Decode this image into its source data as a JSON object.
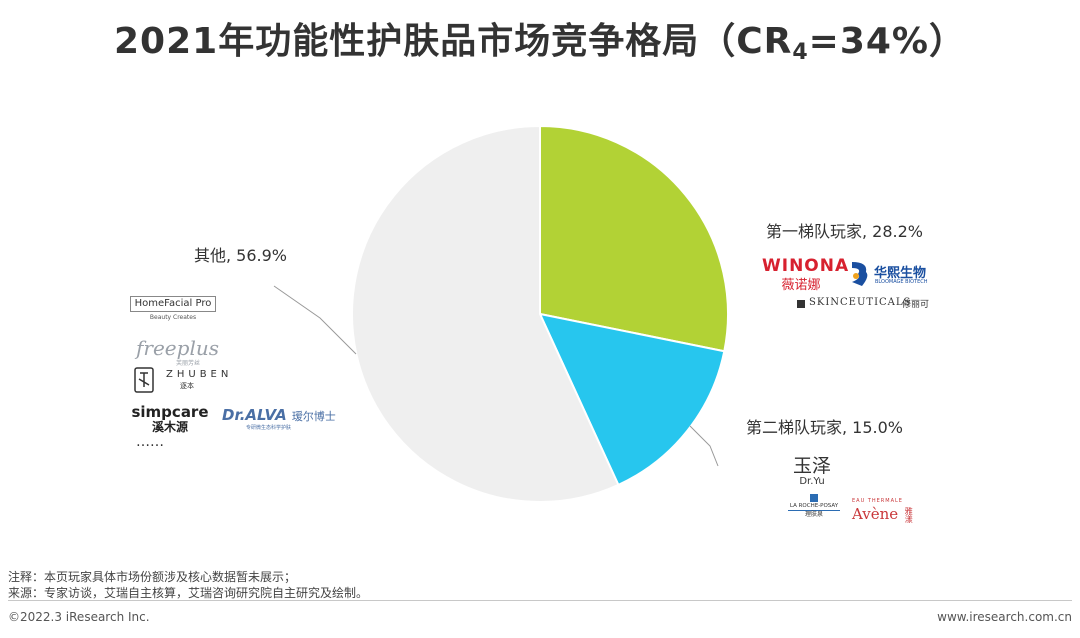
{
  "title": {
    "main": "2021年功能性护肤品市场竞争格局（CR",
    "sub": "4",
    "tail": "=34%）"
  },
  "chart_data": {
    "type": "pie",
    "title": "2021年功能性护肤品市场竞争格局（CR4=34%）",
    "start_angle_deg": 0,
    "direction": "clockwise",
    "slices": [
      {
        "label": "第一梯队玩家, 28.2%",
        "name": "第一梯队玩家",
        "value": 28.2,
        "color": "#b2d235"
      },
      {
        "label": "第二梯队玩家, 15.0%",
        "name": "第二梯队玩家",
        "value": 15.0,
        "color": "#27c6ee"
      },
      {
        "label": "其他, 56.9%",
        "name": "其他",
        "value": 56.9,
        "color": "#efefef"
      }
    ]
  },
  "logos": {
    "tier1": {
      "winona_en": "WINONA",
      "winona_cn": "薇诺娜",
      "bloomage_cn": "华熙生物",
      "bloomage_en": "BLOOMAGE BIOTECH",
      "skinceuticals_en": "SKINCEUTICALS",
      "skinceuticals_cn": "修丽可"
    },
    "tier2": {
      "dryu_cn": "玉泽",
      "dryu_en": "Dr.Yu",
      "lrp_en": "LA ROCHE-POSAY",
      "lrp_cn": "理肤泉",
      "avene_small": "EAU THERMALE",
      "avene_en": "Avène",
      "avene_cn": "雅漾"
    },
    "others": {
      "homefacial": "HomeFacial Pro",
      "homefacial_sub": "Beauty Creates",
      "freeplus": "freeplus",
      "freeplus_cn": "芙丽芳丝",
      "zhuben_en": "ZHUBEN",
      "zhuben_cn": "逐本",
      "simpcare_en": "simpcare",
      "simpcare_cn": "溪木源",
      "dralva_en": "Dr.ALVA",
      "dralva_cn": "瑷尔博士",
      "dralva_sub": "专研微生态科学护肤",
      "ellipsis": "……"
    }
  },
  "notes": {
    "note": "注释：本页玩家具体市场份额涉及核心数据暂未展示；",
    "source": "来源：专家访谈，艾瑞自主核算，艾瑞咨询研究院自主研究及绘制。"
  },
  "footer": {
    "copyright": "©2022.3 iResearch Inc.",
    "site": "www.iresearch.com.cn"
  },
  "colors": {
    "tier1": "#b2d235",
    "tier2": "#27c6ee",
    "others": "#efefef",
    "winona_red": "#d7212f",
    "bloomage_blue": "#1a4fa0",
    "avene_red": "#c9373a"
  }
}
